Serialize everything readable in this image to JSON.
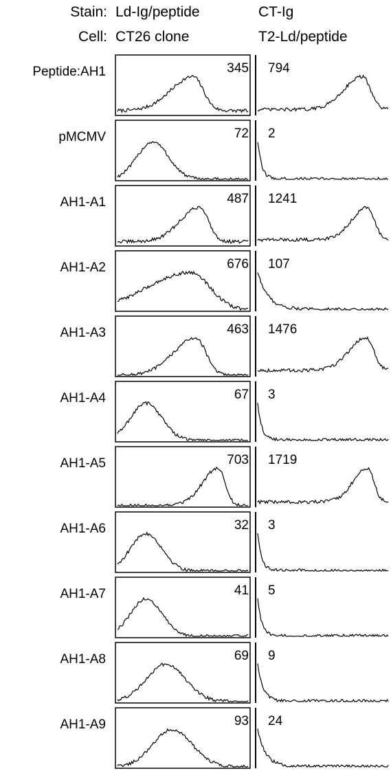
{
  "header": {
    "stain_label": "Stain:",
    "cell_label": "Cell:",
    "col1_stain": "Ld-Ig/peptide",
    "col1_cell": "CT26 clone",
    "col2_stain": "CT-Ig",
    "col2_cell": "T2-Ld/peptide"
  },
  "chart_data": {
    "type": "histogram-panel-grid",
    "row_label_prefix": "Peptide:",
    "columns": [
      {
        "stain": "Ld-Ig/peptide",
        "cell": "CT26 clone"
      },
      {
        "stain": "CT-Ig",
        "cell": "T2-Ld/peptide"
      }
    ],
    "rows": [
      {
        "peptide": "AH1",
        "values": [
          "345",
          "794"
        ],
        "profiles": [
          [
            0.58,
            0.17,
            0.09
          ],
          [
            0.8,
            0.14,
            0.12
          ]
        ]
      },
      {
        "peptide": "pMCMV",
        "values": [
          "72",
          "2"
        ],
        "profiles": [
          [
            0.27,
            0.12,
            0.0
          ],
          [
            0.01,
            0.03,
            0.0
          ]
        ]
      },
      {
        "peptide": "AH1-A1",
        "values": [
          "487",
          "1241"
        ],
        "profiles": [
          [
            0.63,
            0.15,
            0.08
          ],
          [
            0.84,
            0.12,
            0.13
          ]
        ]
      },
      {
        "peptide": "AH1-A2",
        "values": [
          "676",
          "107"
        ],
        "profiles": [
          [
            0.56,
            0.33,
            0.0
          ],
          [
            0.03,
            0.08,
            0.0
          ]
        ]
      },
      {
        "peptide": "AH1-A3",
        "values": [
          "463",
          "1476"
        ],
        "profiles": [
          [
            0.6,
            0.17,
            0.0
          ],
          [
            0.83,
            0.13,
            0.13
          ]
        ]
      },
      {
        "peptide": "AH1-A4",
        "values": [
          "67",
          "3"
        ],
        "profiles": [
          [
            0.22,
            0.12,
            0.0
          ],
          [
            0.01,
            0.03,
            0.0
          ]
        ]
      },
      {
        "peptide": "AH1-A5",
        "values": [
          "703",
          "1719"
        ],
        "profiles": [
          [
            0.77,
            0.12,
            0.0
          ],
          [
            0.84,
            0.11,
            0.1
          ]
        ]
      },
      {
        "peptide": "AH1-A6",
        "values": [
          "32",
          "3"
        ],
        "profiles": [
          [
            0.22,
            0.12,
            0.0
          ],
          [
            0.01,
            0.03,
            0.0
          ]
        ]
      },
      {
        "peptide": "AH1-A7",
        "values": [
          "41",
          "5"
        ],
        "profiles": [
          [
            0.22,
            0.12,
            0.0
          ],
          [
            0.01,
            0.03,
            0.0
          ]
        ]
      },
      {
        "peptide": "AH1-A8",
        "values": [
          "69",
          "9"
        ],
        "profiles": [
          [
            0.37,
            0.15,
            0.0
          ],
          [
            0.02,
            0.04,
            0.0
          ]
        ]
      },
      {
        "peptide": "AH1-A9",
        "values": [
          "93",
          "24"
        ],
        "profiles": [
          [
            0.42,
            0.15,
            0.0
          ],
          [
            0.03,
            0.06,
            0.0
          ]
        ]
      }
    ]
  },
  "colors": {
    "line": "#000000",
    "background": "#ffffff"
  }
}
